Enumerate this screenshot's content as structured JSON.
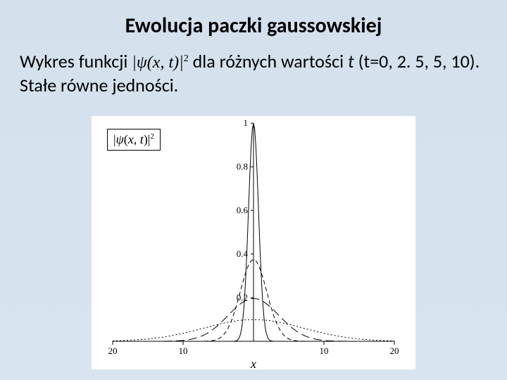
{
  "title": "Ewolucja paczki gaussowskiej",
  "subtitle_part1": "Wykres funkcji ",
  "subtitle_formula": "|ψ(x, t)|²",
  "subtitle_part2": " dla różnych wartości ",
  "subtitle_t": "t",
  "subtitle_part3": " (t=0, 2. 5, 5, 10). Stałe równe jedności.",
  "legend_text": "|ψ(x, t)|²",
  "chart": {
    "type": "line",
    "background_color": "#ffffff",
    "xlim": [
      -20,
      20
    ],
    "ylim": [
      0,
      1
    ],
    "xticks": [
      -20,
      -10,
      10,
      20
    ],
    "xtick_labels": [
      "20",
      "10",
      "10",
      "20"
    ],
    "yticks": [
      0.2,
      0.4,
      0.6,
      0.8,
      1
    ],
    "ytick_labels": [
      "0.2",
      "0.4",
      "0.6",
      "0.8",
      "1"
    ],
    "xlabel": "x",
    "line_color": "#000000",
    "line_width": 1,
    "series": [
      {
        "t": 0,
        "sigma": 0.707,
        "peak": 1.0,
        "dash": "none"
      },
      {
        "t": 2.5,
        "sigma": 1.89,
        "peak": 0.374,
        "dash": "6,4"
      },
      {
        "t": 5,
        "sigma": 3.6,
        "peak": 0.196,
        "dash": "12,6"
      },
      {
        "t": 10,
        "sigma": 7.1,
        "peak": 0.0995,
        "dash": "2,3"
      }
    ]
  }
}
